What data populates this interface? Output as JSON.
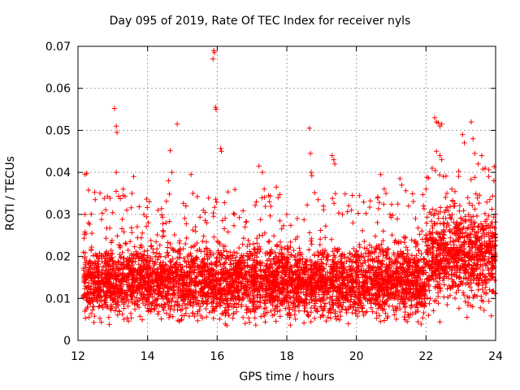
{
  "chart_data": {
    "type": "scatter",
    "title": "Day 095 of 2019, Rate Of TEC Index for receiver nyls",
    "xlabel": "GPS time / hours",
    "ylabel": "ROTI / TECUs",
    "xlim": [
      12,
      24
    ],
    "ylim": [
      0,
      0.07
    ],
    "x_ticks": [
      "12",
      "14",
      "16",
      "18",
      "20",
      "22",
      "24"
    ],
    "y_ticks": [
      "0",
      "0.01",
      "0.02",
      "0.03",
      "0.04",
      "0.05",
      "0.06",
      "0.07"
    ],
    "grid": true,
    "legend": "none",
    "marker": "+",
    "color": "#ff0000",
    "series": [
      {
        "name": "ROTI",
        "points": [
          [
            12.2,
            0.0395
          ],
          [
            12.25,
            0.0398
          ],
          [
            12.2,
            0.03
          ],
          [
            12.3,
            0.028
          ],
          [
            12.4,
            0.0255
          ],
          [
            13.05,
            0.0552
          ],
          [
            13.1,
            0.051
          ],
          [
            13.12,
            0.0495
          ],
          [
            13.1,
            0.04
          ],
          [
            13.3,
            0.036
          ],
          [
            13.6,
            0.039
          ],
          [
            13.55,
            0.035
          ],
          [
            14.05,
            0.033
          ],
          [
            14.3,
            0.031
          ],
          [
            14.65,
            0.0452
          ],
          [
            14.7,
            0.04
          ],
          [
            14.6,
            0.038
          ],
          [
            14.85,
            0.0515
          ],
          [
            15.1,
            0.032
          ],
          [
            15.25,
            0.0395
          ],
          [
            15.3,
            0.035
          ],
          [
            15.6,
            0.031
          ],
          [
            15.7,
            0.028
          ],
          [
            15.9,
            0.069
          ],
          [
            15.92,
            0.0685
          ],
          [
            15.88,
            0.067
          ],
          [
            15.95,
            0.0555
          ],
          [
            15.97,
            0.055
          ],
          [
            16.1,
            0.0457
          ],
          [
            16.12,
            0.045
          ],
          [
            16.5,
            0.03
          ],
          [
            16.8,
            0.027
          ],
          [
            17.2,
            0.0415
          ],
          [
            17.3,
            0.04
          ],
          [
            17.35,
            0.036
          ],
          [
            17.5,
            0.033
          ],
          [
            17.7,
            0.0365
          ],
          [
            17.75,
            0.034
          ],
          [
            18.0,
            0.03
          ],
          [
            18.3,
            0.029
          ],
          [
            18.65,
            0.0505
          ],
          [
            18.68,
            0.0445
          ],
          [
            18.7,
            0.04
          ],
          [
            18.72,
            0.0392
          ],
          [
            18.9,
            0.0335
          ],
          [
            19.05,
            0.032
          ],
          [
            19.3,
            0.044
          ],
          [
            19.35,
            0.043
          ],
          [
            19.38,
            0.042
          ],
          [
            19.6,
            0.03
          ],
          [
            19.9,
            0.028
          ],
          [
            20.4,
            0.0332
          ],
          [
            20.7,
            0.0395
          ],
          [
            20.8,
            0.036
          ],
          [
            20.85,
            0.035
          ],
          [
            21.25,
            0.0385
          ],
          [
            21.3,
            0.037
          ],
          [
            21.5,
            0.032
          ],
          [
            21.7,
            0.029
          ],
          [
            22.25,
            0.053
          ],
          [
            22.3,
            0.052
          ],
          [
            22.35,
            0.0518
          ],
          [
            22.4,
            0.051
          ],
          [
            22.45,
            0.0515
          ],
          [
            22.3,
            0.045
          ],
          [
            22.4,
            0.044
          ],
          [
            22.45,
            0.043
          ],
          [
            22.5,
            0.039
          ],
          [
            23.05,
            0.049
          ],
          [
            23.1,
            0.047
          ],
          [
            23.3,
            0.052
          ],
          [
            23.35,
            0.048
          ],
          [
            23.4,
            0.0445
          ],
          [
            23.5,
            0.042
          ],
          [
            23.6,
            0.044
          ],
          [
            23.7,
            0.041
          ],
          [
            23.8,
            0.039
          ],
          [
            23.95,
            0.038
          ],
          [
            22.0,
            0.036
          ],
          [
            22.6,
            0.035
          ],
          [
            23.2,
            0.034
          ]
        ],
        "dense_band": {
          "note": "Thousands of ROTI samples form a dense band across the whole interval",
          "x_range": [
            12.15,
            24.0
          ],
          "y_core_range": [
            0.005,
            0.025
          ],
          "y_core_center_before_22h": 0.014,
          "y_core_center_after_22h": 0.02
        }
      }
    ]
  }
}
